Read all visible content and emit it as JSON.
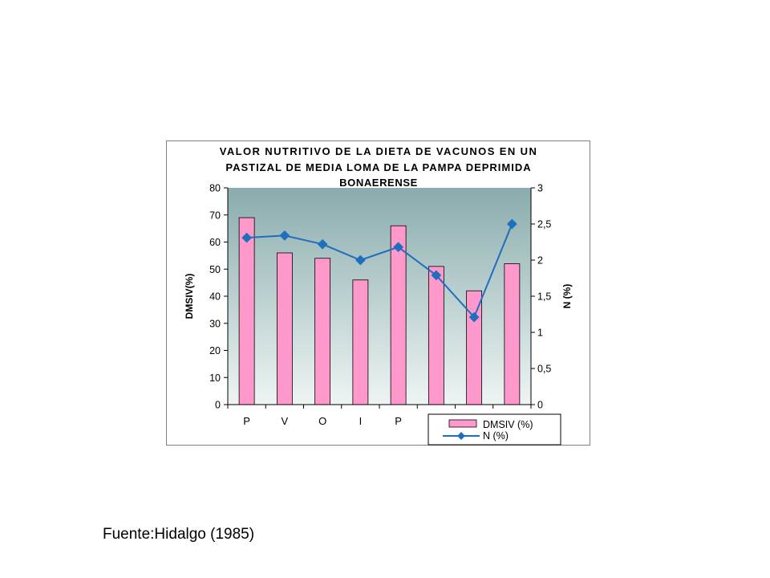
{
  "source_note": "Fuente:Hidalgo (1985)",
  "colors": {
    "bar_fill": "#ff99cc",
    "line": "#1f6fbf",
    "plot_bg_top": "#8aacac",
    "plot_bg_bottom": "#eef4f4"
  },
  "chart_data": {
    "type": "bar",
    "title_lines": [
      "VALOR NUTRITIVO DE LA DIETA DE VACUNOS EN UN",
      "PASTIZAL DE MEDIA LOMA DE LA PAMPA DEPRIMIDA",
      "BONAERENSE"
    ],
    "categories": [
      "P",
      "V",
      "O",
      "I",
      "P",
      "",
      "",
      ""
    ],
    "ylabel": "DMSIV(%)",
    "y2label": "N (%)",
    "ylim": [
      0,
      80
    ],
    "y2lim": [
      0,
      3
    ],
    "yticks": [
      "0",
      "10",
      "20",
      "30",
      "40",
      "50",
      "60",
      "70",
      "80"
    ],
    "y2ticks": [
      "0",
      "0,5",
      "1",
      "1,5",
      "2",
      "2,5",
      "3"
    ],
    "legend_position": "bottom-right",
    "series": [
      {
        "name": "DMSIV (%)",
        "type": "bar",
        "axis": "left",
        "values": [
          69,
          56,
          54,
          46,
          66,
          51,
          42,
          52
        ]
      },
      {
        "name": "N (%)",
        "type": "line",
        "axis": "right",
        "values": [
          2.31,
          2.34,
          2.22,
          2.0,
          2.18,
          1.79,
          1.21,
          2.5
        ]
      }
    ]
  }
}
